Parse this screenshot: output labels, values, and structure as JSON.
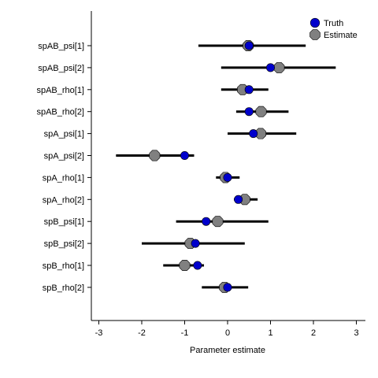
{
  "chart_data": {
    "type": "scatter",
    "subtype": "forest-plot",
    "title": "",
    "xlabel": "Parameter estimate",
    "ylabel": "",
    "xlim": [
      -3.2,
      3.25
    ],
    "x_ticks": [
      -3,
      -2,
      -1,
      0,
      1,
      2,
      3
    ],
    "x_tick_labels": [
      "-3",
      "-2",
      "-1",
      "0",
      "1",
      "2",
      "3"
    ],
    "grid": false,
    "legend_position": "top-right",
    "categories": [
      "spAB_psi[1]",
      "spAB_psi[2]",
      "spAB_rho[1]",
      "spAB_rho[2]",
      "spA_psi[1]",
      "spA_psi[2]",
      "spA_rho[1]",
      "spA_rho[2]",
      "spB_psi[1]",
      "spB_psi[2]",
      "spB_rho[1]",
      "spB_rho[2]"
    ],
    "series": [
      {
        "name": "Truth",
        "color": "#0000cc",
        "marker": "circle",
        "values": [
          0.5,
          1.0,
          0.5,
          0.5,
          0.6,
          -1.0,
          0.0,
          0.25,
          -0.5,
          -0.75,
          -0.7,
          0.0
        ]
      },
      {
        "name": "Estimate",
        "color": "#808080",
        "marker": "octagon",
        "values": [
          0.48,
          1.2,
          0.35,
          0.78,
          0.77,
          -1.7,
          -0.05,
          0.4,
          -0.23,
          -0.87,
          -1.0,
          -0.07
        ],
        "ci_lower": [
          -0.68,
          -0.15,
          -0.15,
          0.2,
          0.0,
          -2.6,
          -0.27,
          0.15,
          -1.2,
          -2.0,
          -1.5,
          -0.6
        ],
        "ci_upper": [
          1.82,
          2.52,
          0.95,
          1.42,
          1.6,
          -0.78,
          0.28,
          0.7,
          0.95,
          0.4,
          -0.55,
          0.48
        ]
      }
    ]
  }
}
